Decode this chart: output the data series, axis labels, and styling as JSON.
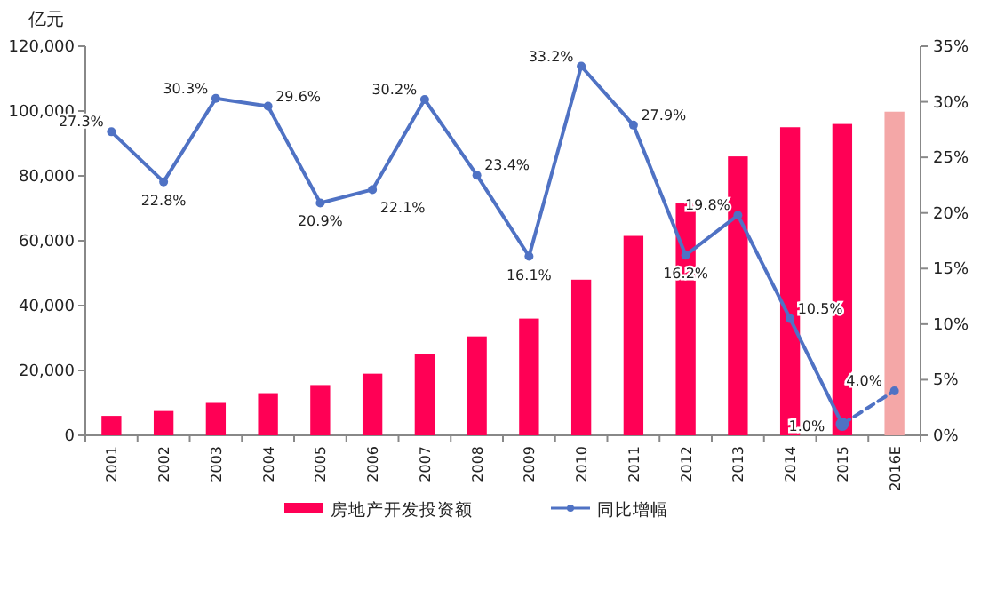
{
  "chart_data": {
    "type": "bar",
    "ylabel": "亿元",
    "categories": [
      "2001",
      "2002",
      "2003",
      "2004",
      "2005",
      "2006",
      "2007",
      "2008",
      "2009",
      "2010",
      "2011",
      "2012",
      "2013",
      "2014",
      "2015",
      "2016E"
    ],
    "series": [
      {
        "name": "房地产开发投资额",
        "color": "#ff0055",
        "colors": [
          "#ff0055",
          "#ff0055",
          "#ff0055",
          "#ff0055",
          "#ff0055",
          "#ff0055",
          "#ff0055",
          "#ff0055",
          "#ff0055",
          "#ff0055",
          "#ff0055",
          "#ff0055",
          "#ff0055",
          "#ff0055",
          "#ff0055",
          "#f4a7a7"
        ],
        "values": [
          6000,
          7500,
          10000,
          13000,
          15500,
          19000,
          25000,
          30500,
          36000,
          48000,
          61500,
          71500,
          86000,
          95000,
          96000,
          99800
        ]
      },
      {
        "name": "同比增幅",
        "type": "line",
        "axis": "y2",
        "color": "#4f72c4",
        "marker": "circle",
        "line_style": "solid",
        "values": [
          27.3,
          22.8,
          30.3,
          29.6,
          20.9,
          22.1,
          30.2,
          23.4,
          16.1,
          33.2,
          27.9,
          16.2,
          19.8,
          10.5,
          1.0,
          null
        ],
        "value_labels": [
          "27.3%",
          "22.8%",
          "30.3%",
          "29.6%",
          "20.9%",
          "22.1%",
          "30.2%",
          "23.4%",
          "16.1%",
          "33.2%",
          "27.9%",
          "16.2%",
          "19.8%",
          "10.5%",
          "1.0%",
          null
        ]
      },
      {
        "type": "line",
        "axis": "y2",
        "color": "#4f72c4",
        "marker": "circle",
        "line_style": "dashed",
        "values": [
          null,
          null,
          null,
          null,
          null,
          null,
          null,
          null,
          null,
          null,
          null,
          null,
          null,
          null,
          1.0,
          4.0
        ],
        "value_labels": [
          null,
          null,
          null,
          null,
          null,
          null,
          null,
          null,
          null,
          null,
          null,
          null,
          null,
          null,
          null,
          "4.0%"
        ]
      }
    ],
    "ylim": [
      0,
      120000
    ],
    "yticks": [
      0,
      {
        "value": 20000,
        "label": "20,000"
      },
      {
        "value": 40000,
        "label": "40,000"
      },
      {
        "value": 60000,
        "label": "60,000"
      },
      {
        "value": 80000,
        "label": "80,000"
      },
      {
        "value": 100000,
        "label": "100,000"
      },
      {
        "value": 120000,
        "label": "120,000"
      }
    ],
    "y2lim": [
      0,
      35
    ],
    "y2ticks": [
      {
        "value": 0,
        "label": "0%"
      },
      {
        "value": 5,
        "label": "5%"
      },
      {
        "value": 10,
        "label": "10%"
      },
      {
        "value": 15,
        "label": "15%"
      },
      {
        "value": 20,
        "label": "20%"
      },
      {
        "value": 25,
        "label": "25%"
      },
      {
        "value": 30,
        "label": "30%"
      },
      {
        "value": 35,
        "label": "35%"
      }
    ],
    "legend": "bottom",
    "grid": false
  }
}
